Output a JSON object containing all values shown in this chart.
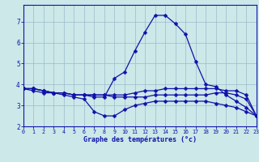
{
  "title": "Graphe des températures (°c)",
  "x_hours": [
    0,
    1,
    2,
    3,
    4,
    5,
    6,
    7,
    8,
    9,
    10,
    11,
    12,
    13,
    14,
    15,
    16,
    17,
    18,
    19,
    20,
    21,
    22,
    23
  ],
  "line_main": [
    3.8,
    3.8,
    3.7,
    3.6,
    3.6,
    3.5,
    3.5,
    3.4,
    3.4,
    4.3,
    4.6,
    5.6,
    6.5,
    7.3,
    7.3,
    6.9,
    6.4,
    5.1,
    4.0,
    3.9,
    3.5,
    3.2,
    2.9,
    2.5
  ],
  "line_flat1": [
    3.8,
    3.8,
    3.7,
    3.6,
    3.6,
    3.5,
    3.5,
    3.5,
    3.5,
    3.5,
    3.5,
    3.6,
    3.7,
    3.7,
    3.8,
    3.8,
    3.8,
    3.8,
    3.8,
    3.8,
    3.7,
    3.7,
    3.5,
    2.5
  ],
  "line_flat2": [
    3.8,
    3.8,
    3.7,
    3.6,
    3.6,
    3.5,
    3.5,
    3.5,
    3.5,
    3.4,
    3.4,
    3.4,
    3.4,
    3.5,
    3.5,
    3.5,
    3.5,
    3.5,
    3.5,
    3.6,
    3.6,
    3.5,
    3.3,
    2.5
  ],
  "line_low": [
    3.8,
    3.7,
    3.6,
    3.6,
    3.5,
    3.4,
    3.3,
    2.7,
    2.5,
    2.5,
    2.8,
    3.0,
    3.1,
    3.2,
    3.2,
    3.2,
    3.2,
    3.2,
    3.2,
    3.1,
    3.0,
    2.9,
    2.7,
    2.5
  ],
  "ylim": [
    2.0,
    7.8
  ],
  "xlim": [
    0,
    23
  ],
  "yticks": [
    2,
    3,
    4,
    5,
    6,
    7
  ],
  "xticks": [
    0,
    1,
    2,
    3,
    4,
    5,
    6,
    7,
    8,
    9,
    10,
    11,
    12,
    13,
    14,
    15,
    16,
    17,
    18,
    19,
    20,
    21,
    22,
    23
  ],
  "line_color": "#1111aa",
  "bg_color": "#cce8e8",
  "grid_color": "#99bbcc",
  "marker": "D",
  "marker_size": 2.5,
  "line_width": 0.9
}
